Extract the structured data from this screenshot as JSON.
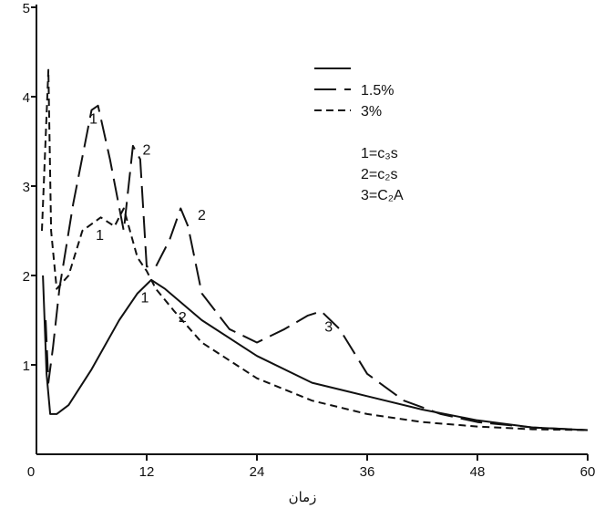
{
  "chart_data": {
    "type": "line",
    "title": "",
    "xlabel": "زمان",
    "ylabel": "",
    "xlim": [
      0,
      60
    ],
    "ylim": [
      0,
      5
    ],
    "xticks": [
      0,
      12,
      24,
      36,
      48,
      60
    ],
    "yticks": [
      1,
      2,
      3,
      4,
      5
    ],
    "grid": false,
    "legend_position": "top-right",
    "series": [
      {
        "name": "",
        "dash": "solid",
        "x": [
          0.7,
          1.1,
          1.5,
          2.2,
          3.5,
          6,
          9,
          11,
          12.5,
          14,
          18,
          24,
          30,
          36,
          42,
          48,
          54,
          60
        ],
        "y": [
          2.0,
          0.9,
          0.45,
          0.45,
          0.55,
          0.95,
          1.5,
          1.8,
          1.95,
          1.85,
          1.5,
          1.1,
          0.8,
          0.65,
          0.5,
          0.38,
          0.3,
          0.27
        ]
      },
      {
        "name": "1.5%",
        "dash": "long-dash",
        "x": [
          1.0,
          1.3,
          1.8,
          2.5,
          4,
          6,
          6.7,
          8,
          9.5,
          10.5,
          11.3,
          12,
          13,
          14.5,
          15.7,
          16.5,
          18,
          21,
          24,
          27,
          29.5,
          31,
          33,
          36,
          40,
          44,
          48,
          54,
          60
        ],
        "y": [
          1.5,
          0.8,
          1.2,
          1.85,
          2.8,
          3.85,
          3.9,
          3.3,
          2.5,
          3.45,
          3.3,
          2.1,
          2.1,
          2.4,
          2.75,
          2.55,
          1.8,
          1.4,
          1.25,
          1.4,
          1.55,
          1.6,
          1.4,
          0.9,
          0.6,
          0.45,
          0.36,
          0.3,
          0.27
        ]
      },
      {
        "name": "3%",
        "dash": "short-dash",
        "x": [
          0.6,
          1.3,
          1.6,
          2.2,
          3.5,
          5,
          7,
          8.5,
          9.5,
          11,
          12,
          13,
          15,
          18,
          24,
          30,
          36,
          42,
          48,
          54,
          60
        ],
        "y": [
          2.5,
          4.3,
          2.5,
          1.85,
          2.0,
          2.5,
          2.65,
          2.55,
          2.75,
          2.2,
          2.05,
          1.85,
          1.6,
          1.25,
          0.85,
          0.6,
          0.45,
          0.36,
          0.31,
          0.28,
          0.27
        ]
      }
    ],
    "curve_labels": [
      {
        "text": "1",
        "x": 6.2,
        "y": 3.7
      },
      {
        "text": "1",
        "x": 6.9,
        "y": 2.4
      },
      {
        "text": "2",
        "x": 12.0,
        "y": 3.35
      },
      {
        "text": "2",
        "x": 18.0,
        "y": 2.62
      },
      {
        "text": "1",
        "x": 11.8,
        "y": 1.7
      },
      {
        "text": "2",
        "x": 15.9,
        "y": 1.48
      },
      {
        "text": "3",
        "x": 31.8,
        "y": 1.37
      }
    ],
    "annotations": [
      "1=c₃s",
      "2=c₂s",
      "3=C₂A"
    ]
  }
}
